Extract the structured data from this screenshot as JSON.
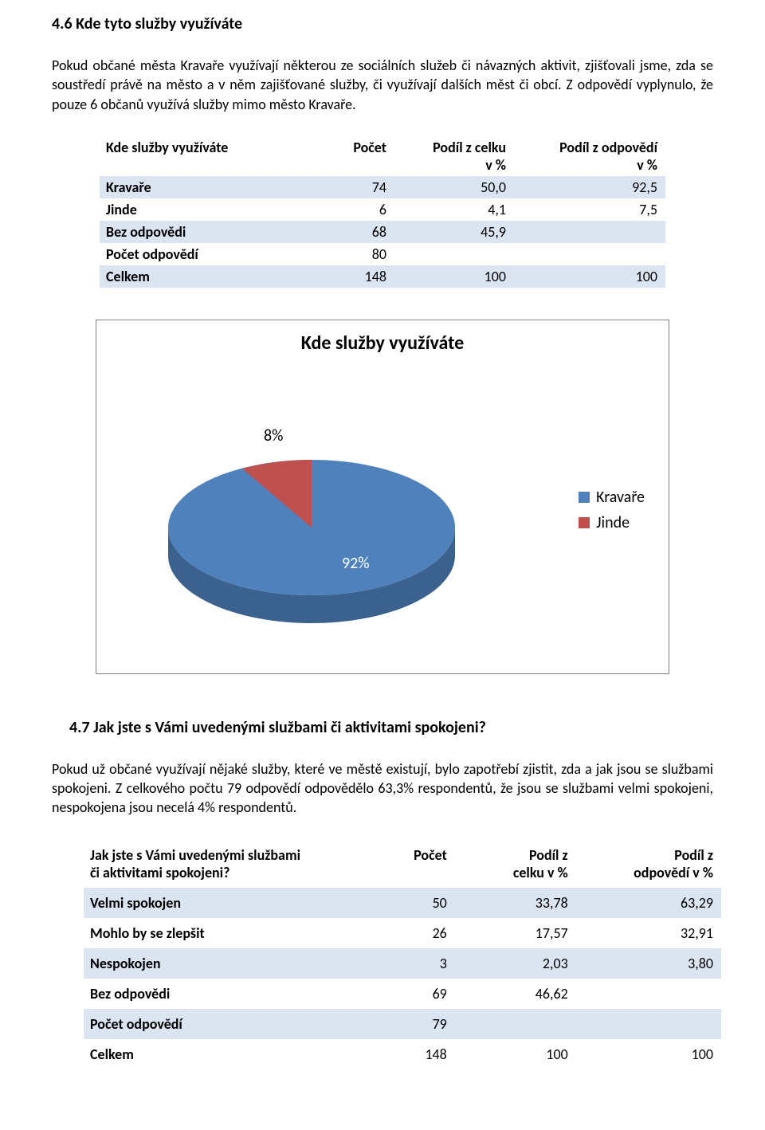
{
  "section1": {
    "heading": "4.6 Kde tyto služby využíváte",
    "paragraph": "Pokud občané města Kravaře využívají některou ze sociálních služeb či návazných aktivit, zjišťovali jsme, zda se soustředí právě na město a v něm zajišťované služby, či využívají dalších měst či obcí. Z odpovědí vyplynulo, že pouze 6 občanů využívá služby mimo město Kravaře."
  },
  "table1": {
    "col_widths": [
      "260px",
      "110px",
      "150px",
      "190px"
    ],
    "band_color": "#dbe5f1",
    "hdr_c0": "Kde služby využíváte",
    "hdr_c1": "Počet",
    "hdr_c2a": "Podíl z celku",
    "hdr_c2b": "v %",
    "hdr_c3a": "Podíl z odpovědí",
    "hdr_c3b": "v %",
    "rows": [
      {
        "band": true,
        "c0": "Kravaře",
        "c1": "74",
        "c2": "50,0",
        "c3": "92,5"
      },
      {
        "band": false,
        "c0": "Jinde",
        "c1": "6",
        "c2": "4,1",
        "c3": "7,5"
      },
      {
        "band": true,
        "c0": "Bez odpovědi",
        "c1": "68",
        "c2": "45,9",
        "c3": ""
      },
      {
        "band": false,
        "c0": "Počet odpovědí",
        "c1": "80",
        "c2": "",
        "c3": ""
      },
      {
        "band": true,
        "c0": "Celkem",
        "c1": "148",
        "c2": "100",
        "c3": "100"
      }
    ]
  },
  "chart": {
    "type": "pie-3d",
    "title": "Kde služby využíváte",
    "title_fontsize": 24,
    "background_color": "#ffffff",
    "border_color": "#808080",
    "slices": [
      {
        "label": "Kravaře",
        "pct": 92,
        "face_color": "#4f81bd",
        "side_color": "#3b618f"
      },
      {
        "label": "Jinde",
        "pct": 8,
        "face_color": "#c0504d",
        "side_color": "#8e3b39"
      }
    ],
    "slice_label_8": "8%",
    "slice_label_92": "92%",
    "label_fontsize": 20,
    "legend": {
      "fontsize": 20,
      "swatch_size": 14,
      "items": [
        {
          "label": "Kravaře",
          "color": "#4f81bd"
        },
        {
          "label": "Jinde",
          "color": "#c0504d"
        }
      ]
    }
  },
  "section2": {
    "heading": "4.7 Jak jste s Vámi uvedenými službami či aktivitami spokojeni?",
    "paragraph": "Pokud už občané využívají nějaké služby, které ve městě existují, bylo zapotřebí zjistit, zda a  jak jsou se službami spokojeni. Z celkového počtu 79 odpovědí odpovědělo 63,3% respondentů, že jsou se službami velmi spokojeni, nespokojena jsou necelá 4% respondentů."
  },
  "table2": {
    "col_widths": [
      "340px",
      "120px",
      "150px",
      "180px"
    ],
    "band_color": "#dbe5f1",
    "hdr_c0a": "Jak jste s Vámi uvedenými službami",
    "hdr_c0b": "či aktivitami spokojeni?",
    "hdr_c1": "Počet",
    "hdr_c2a": "Podíl z",
    "hdr_c2b": "celku v %",
    "hdr_c3a": "Podíl z",
    "hdr_c3b": "odpovědí v %",
    "rows": [
      {
        "band": true,
        "c0": "Velmi spokojen",
        "c1": "50",
        "c2": "33,78",
        "c3": "63,29"
      },
      {
        "band": false,
        "c0": "Mohlo by se zlepšit",
        "c1": "26",
        "c2": "17,57",
        "c3": "32,91"
      },
      {
        "band": true,
        "c0": "Nespokojen",
        "c1": "3",
        "c2": "2,03",
        "c3": "3,80"
      },
      {
        "band": false,
        "c0": "Bez odpovědi",
        "c1": "69",
        "c2": "46,62",
        "c3": ""
      },
      {
        "band": true,
        "c0": "Počet odpovědí",
        "c1": "79",
        "c2": "",
        "c3": ""
      },
      {
        "band": false,
        "c0": "Celkem",
        "c1": "148",
        "c2": "100",
        "c3": "100"
      }
    ]
  }
}
